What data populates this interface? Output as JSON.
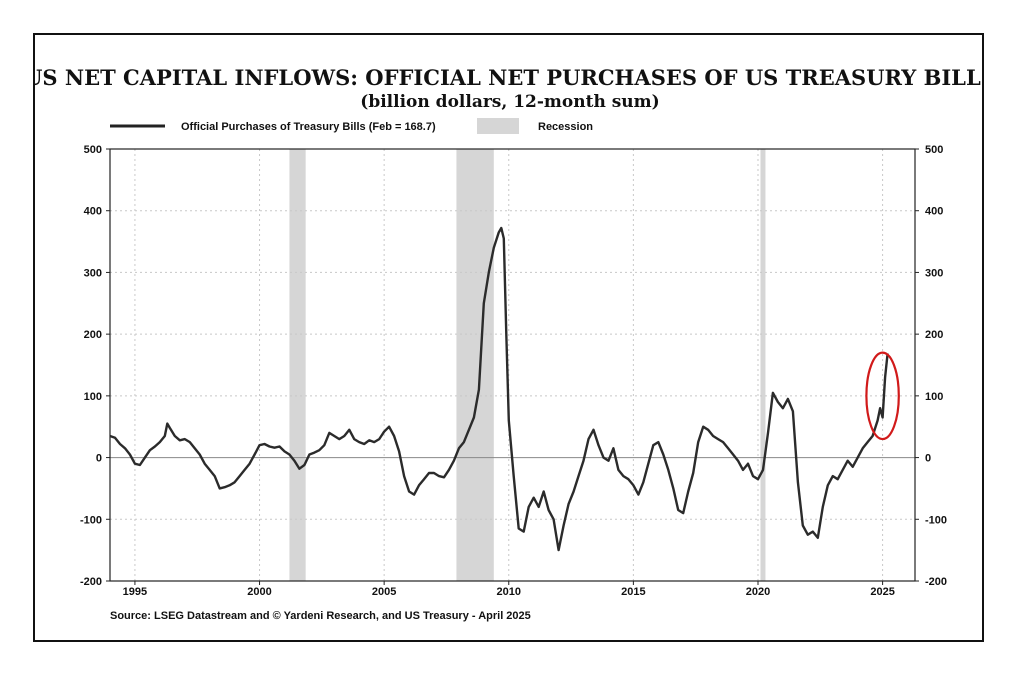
{
  "chart_data": {
    "type": "line",
    "title": "US NET CAPITAL INFLOWS: OFFICIAL NET PURCHASES OF US TREASURY BILLS",
    "subtitle": "(billion dollars, 12-month sum)",
    "legend": {
      "series_label": "Official Purchases of Treasury Bills (Feb = 168.7)",
      "recession_label": "Recession",
      "placement": "top-left"
    },
    "source": "Source: LSEG Datastream and © Yardeni Research, and US Treasury - April 2025",
    "ylim": [
      -200,
      500
    ],
    "yticks": [
      "500",
      "400",
      "300",
      "200",
      "100",
      "0",
      "-100",
      "-200"
    ],
    "xlim": [
      1994.0,
      2026.3
    ],
    "xticks": [
      "1995",
      "2000",
      "2005",
      "2010",
      "2015",
      "2020",
      "2025"
    ],
    "grid": true,
    "colors": {
      "line": "#2b2b2b",
      "recession": "#d6d6d6",
      "highlight": "#d11a1a",
      "zero_line": "#888888"
    },
    "recessions": [
      {
        "start": 2001.2,
        "end": 2001.85
      },
      {
        "start": 2007.9,
        "end": 2009.4
      },
      {
        "start": 2020.1,
        "end": 2020.3
      }
    ],
    "highlight": {
      "shape": "ellipse",
      "center_x": 2025.0,
      "center_y": 100,
      "radius_x": 0.65,
      "radius_y": 70
    },
    "series": [
      {
        "name": "Official Purchases of Treasury Bills (Feb = 168.7)",
        "points": [
          [
            1994.0,
            35
          ],
          [
            1994.2,
            32
          ],
          [
            1994.4,
            22
          ],
          [
            1994.6,
            15
          ],
          [
            1994.8,
            5
          ],
          [
            1995.0,
            -10
          ],
          [
            1995.2,
            -12
          ],
          [
            1995.4,
            0
          ],
          [
            1995.6,
            12
          ],
          [
            1995.8,
            18
          ],
          [
            1996.0,
            25
          ],
          [
            1996.2,
            35
          ],
          [
            1996.3,
            55
          ],
          [
            1996.4,
            48
          ],
          [
            1996.6,
            35
          ],
          [
            1996.8,
            28
          ],
          [
            1997.0,
            30
          ],
          [
            1997.2,
            25
          ],
          [
            1997.4,
            15
          ],
          [
            1997.6,
            5
          ],
          [
            1997.8,
            -10
          ],
          [
            1998.0,
            -20
          ],
          [
            1998.2,
            -30
          ],
          [
            1998.4,
            -50
          ],
          [
            1998.6,
            -48
          ],
          [
            1998.8,
            -45
          ],
          [
            1999.0,
            -40
          ],
          [
            1999.2,
            -30
          ],
          [
            1999.4,
            -20
          ],
          [
            1999.6,
            -10
          ],
          [
            1999.8,
            5
          ],
          [
            2000.0,
            20
          ],
          [
            2000.2,
            22
          ],
          [
            2000.4,
            18
          ],
          [
            2000.6,
            16
          ],
          [
            2000.8,
            18
          ],
          [
            2001.0,
            10
          ],
          [
            2001.2,
            5
          ],
          [
            2001.4,
            -5
          ],
          [
            2001.6,
            -18
          ],
          [
            2001.8,
            -12
          ],
          [
            2002.0,
            5
          ],
          [
            2002.2,
            8
          ],
          [
            2002.4,
            12
          ],
          [
            2002.6,
            20
          ],
          [
            2002.8,
            40
          ],
          [
            2003.0,
            35
          ],
          [
            2003.2,
            30
          ],
          [
            2003.4,
            35
          ],
          [
            2003.6,
            45
          ],
          [
            2003.8,
            30
          ],
          [
            2004.0,
            25
          ],
          [
            2004.2,
            22
          ],
          [
            2004.4,
            28
          ],
          [
            2004.6,
            25
          ],
          [
            2004.8,
            30
          ],
          [
            2005.0,
            42
          ],
          [
            2005.2,
            50
          ],
          [
            2005.4,
            35
          ],
          [
            2005.6,
            10
          ],
          [
            2005.8,
            -30
          ],
          [
            2006.0,
            -55
          ],
          [
            2006.2,
            -60
          ],
          [
            2006.4,
            -45
          ],
          [
            2006.6,
            -35
          ],
          [
            2006.8,
            -25
          ],
          [
            2007.0,
            -25
          ],
          [
            2007.2,
            -30
          ],
          [
            2007.4,
            -32
          ],
          [
            2007.6,
            -20
          ],
          [
            2007.8,
            -5
          ],
          [
            2008.0,
            15
          ],
          [
            2008.2,
            25
          ],
          [
            2008.4,
            45
          ],
          [
            2008.6,
            65
          ],
          [
            2008.8,
            110
          ],
          [
            2009.0,
            250
          ],
          [
            2009.2,
            300
          ],
          [
            2009.4,
            340
          ],
          [
            2009.6,
            365
          ],
          [
            2009.7,
            372
          ],
          [
            2009.8,
            355
          ],
          [
            2009.9,
            200
          ],
          [
            2010.0,
            60
          ],
          [
            2010.2,
            -30
          ],
          [
            2010.4,
            -115
          ],
          [
            2010.6,
            -120
          ],
          [
            2010.8,
            -80
          ],
          [
            2011.0,
            -65
          ],
          [
            2011.2,
            -80
          ],
          [
            2011.4,
            -55
          ],
          [
            2011.6,
            -85
          ],
          [
            2011.8,
            -100
          ],
          [
            2012.0,
            -150
          ],
          [
            2012.2,
            -110
          ],
          [
            2012.4,
            -75
          ],
          [
            2012.6,
            -55
          ],
          [
            2012.8,
            -30
          ],
          [
            2013.0,
            -5
          ],
          [
            2013.2,
            30
          ],
          [
            2013.4,
            45
          ],
          [
            2013.6,
            20
          ],
          [
            2013.8,
            0
          ],
          [
            2014.0,
            -5
          ],
          [
            2014.2,
            15
          ],
          [
            2014.4,
            -20
          ],
          [
            2014.6,
            -30
          ],
          [
            2014.8,
            -35
          ],
          [
            2015.0,
            -45
          ],
          [
            2015.2,
            -60
          ],
          [
            2015.4,
            -40
          ],
          [
            2015.6,
            -10
          ],
          [
            2015.8,
            20
          ],
          [
            2016.0,
            25
          ],
          [
            2016.2,
            5
          ],
          [
            2016.4,
            -20
          ],
          [
            2016.6,
            -50
          ],
          [
            2016.8,
            -85
          ],
          [
            2017.0,
            -90
          ],
          [
            2017.2,
            -55
          ],
          [
            2017.4,
            -25
          ],
          [
            2017.6,
            25
          ],
          [
            2017.8,
            50
          ],
          [
            2018.0,
            45
          ],
          [
            2018.2,
            35
          ],
          [
            2018.4,
            30
          ],
          [
            2018.6,
            25
          ],
          [
            2018.8,
            15
          ],
          [
            2019.0,
            5
          ],
          [
            2019.2,
            -5
          ],
          [
            2019.4,
            -20
          ],
          [
            2019.6,
            -10
          ],
          [
            2019.8,
            -30
          ],
          [
            2020.0,
            -35
          ],
          [
            2020.2,
            -20
          ],
          [
            2020.4,
            40
          ],
          [
            2020.6,
            105
          ],
          [
            2020.8,
            90
          ],
          [
            2021.0,
            80
          ],
          [
            2021.2,
            95
          ],
          [
            2021.4,
            75
          ],
          [
            2021.6,
            -40
          ],
          [
            2021.8,
            -110
          ],
          [
            2022.0,
            -125
          ],
          [
            2022.2,
            -120
          ],
          [
            2022.4,
            -130
          ],
          [
            2022.6,
            -80
          ],
          [
            2022.8,
            -45
          ],
          [
            2023.0,
            -30
          ],
          [
            2023.2,
            -35
          ],
          [
            2023.4,
            -20
          ],
          [
            2023.6,
            -5
          ],
          [
            2023.8,
            -15
          ],
          [
            2024.0,
            0
          ],
          [
            2024.2,
            15
          ],
          [
            2024.4,
            25
          ],
          [
            2024.6,
            35
          ],
          [
            2024.8,
            60
          ],
          [
            2024.9,
            80
          ],
          [
            2025.0,
            65
          ],
          [
            2025.1,
            130
          ],
          [
            2025.2,
            168.7
          ]
        ]
      }
    ]
  }
}
